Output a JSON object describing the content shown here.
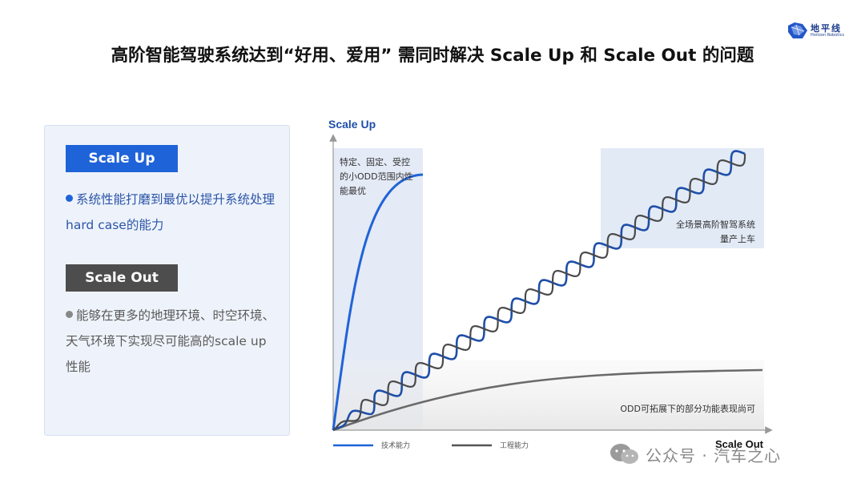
{
  "logo": {
    "name": "地平线",
    "sub": "Horizon Robotics"
  },
  "title": "高阶智能驾驶系统达到“好用、爱用” 需同时解决 Scale Up 和 Scale Out 的问题",
  "panel": {
    "scale_up_tag": "Scale Up",
    "scale_up_text": "系统性能打磨到最优以提升系统处理hard case的能力",
    "scale_out_tag": "Scale Out",
    "scale_out_text": "能够在更多的地理环境、时空环境、天气环境下实现尽可能高的scale up性能"
  },
  "chart_data": {
    "type": "line",
    "ylabel": "Scale Up",
    "xlabel": "Scale Out",
    "annotations": {
      "top_left": [
        "特定、固定、受控",
        "的小ODD范围内性",
        "能最优"
      ],
      "top_right": [
        "全场景高阶智驾系统",
        "量产上车"
      ],
      "bottom_right": "ODD可拓展下的部分功能表现尚可"
    },
    "legend": [
      {
        "name": "技术能力",
        "color": "#1f63d8"
      },
      {
        "name": "工程能力",
        "color": "#555555"
      }
    ]
  },
  "watermark": "公众号 · 汽车之心"
}
